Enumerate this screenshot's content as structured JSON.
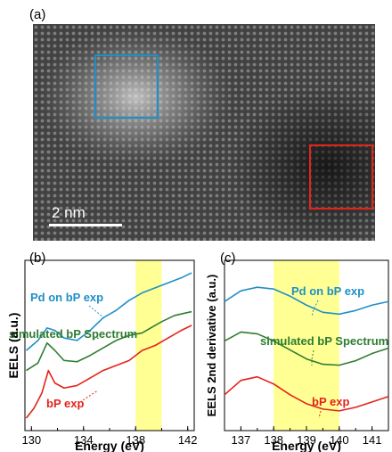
{
  "figure": {
    "panel_a_label": "(a)",
    "panel_b_label": "(b)",
    "panel_c_label": "(c)",
    "scale_bar_label": "2 nm",
    "colors": {
      "blue_box": "#1f8fc9",
      "red_box": "#e3241b",
      "highlight": "#ffff80",
      "pd_curve": "#1f8fc9",
      "sim_curve": "#2e7d32",
      "bp_curve": "#e3241b"
    }
  },
  "chart_data": [
    {
      "type": "line",
      "xlabel": "Energy (eV)",
      "ylabel": "EELS (a.u.)",
      "xlim": [
        129.5,
        142.5
      ],
      "xticks": [
        130,
        134,
        138,
        142
      ],
      "yticks_shown": false,
      "highlight_band": [
        138,
        140
      ],
      "series": [
        {
          "name": "Pd on bP exp",
          "x": [
            129.6,
            130.5,
            131.2,
            131.8,
            132.5,
            133.5,
            134.5,
            135.5,
            136.5,
            137.5,
            138.5,
            139.5,
            140.5,
            141.5,
            142.3
          ],
          "y": [
            4.7,
            5.1,
            5.6,
            5.5,
            5.2,
            5.1,
            5.5,
            6.0,
            6.3,
            6.7,
            7.0,
            7.2,
            7.4,
            7.6,
            7.8
          ]
        },
        {
          "name": "simulated bP Spectrum",
          "x": [
            129.6,
            130.5,
            131.2,
            131.8,
            132.5,
            133.5,
            134.5,
            135.5,
            136.5,
            137.5,
            138.5,
            139.0,
            140.0,
            141.0,
            142.3
          ],
          "y": [
            3.9,
            4.2,
            5.0,
            4.7,
            4.3,
            4.25,
            4.5,
            4.8,
            5.1,
            5.3,
            5.4,
            5.55,
            5.85,
            6.1,
            6.25
          ]
        },
        {
          "name": "bP exp",
          "x": [
            129.6,
            130.2,
            130.8,
            131.3,
            131.8,
            132.5,
            133.5,
            134.5,
            135.5,
            136.5,
            137.5,
            138.5,
            139.5,
            140.5,
            141.5,
            142.3
          ],
          "y": [
            2.0,
            2.4,
            3.0,
            3.9,
            3.4,
            3.2,
            3.3,
            3.6,
            3.9,
            4.1,
            4.3,
            4.7,
            4.9,
            5.2,
            5.5,
            5.7
          ]
        }
      ],
      "annotations": [
        "Pd on bP exp",
        "simulated bP Spectrum",
        "bP exp"
      ]
    },
    {
      "type": "line",
      "xlabel": "Energy (eV)",
      "ylabel": "EELS 2nd derivative (a.u.)",
      "xlim": [
        136.5,
        141.5
      ],
      "xticks": [
        137,
        138,
        139,
        140,
        141
      ],
      "yticks_shown": false,
      "highlight_band": [
        138,
        140
      ],
      "series": [
        {
          "name": "Pd on bP exp",
          "x": [
            136.5,
            137.0,
            137.5,
            138.0,
            138.5,
            139.0,
            139.5,
            140.0,
            140.5,
            141.0,
            141.5
          ],
          "y": [
            8.2,
            8.8,
            9.0,
            8.9,
            8.5,
            8.0,
            7.6,
            7.5,
            7.7,
            8.0,
            8.2
          ]
        },
        {
          "name": "simulated bP Spectrum",
          "x": [
            136.5,
            137.0,
            137.5,
            138.0,
            138.5,
            139.0,
            139.5,
            140.0,
            140.5,
            141.0,
            141.5
          ],
          "y": [
            6.0,
            6.5,
            6.4,
            6.0,
            5.5,
            5.0,
            4.7,
            4.65,
            4.9,
            5.3,
            5.6
          ]
        },
        {
          "name": "bP exp",
          "x": [
            136.5,
            137.0,
            137.5,
            138.0,
            138.5,
            139.0,
            139.5,
            140.0,
            140.5,
            141.0,
            141.5
          ],
          "y": [
            3.0,
            3.8,
            4.0,
            3.6,
            3.0,
            2.5,
            2.2,
            2.1,
            2.3,
            2.6,
            2.9
          ]
        }
      ],
      "annotations": [
        "Pd on bP exp",
        "simulated bP Spectrum",
        "bP exp"
      ]
    }
  ]
}
